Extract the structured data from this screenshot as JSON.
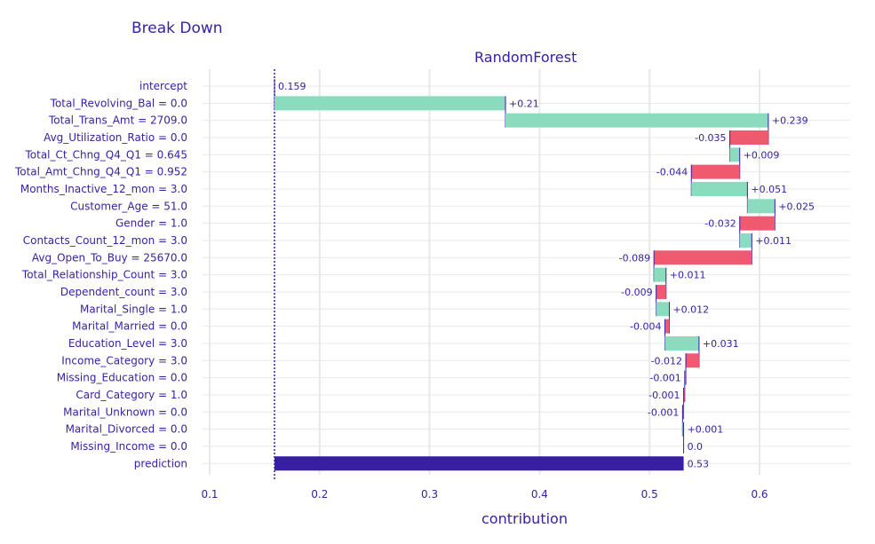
{
  "title": "Break Down",
  "chart_data": {
    "type": "bar",
    "subplot_title": "RandomForest",
    "xlabel": "contribution",
    "ylabel": "",
    "xlim": [
      0.1,
      0.68
    ],
    "x_ticks": [
      0.1,
      0.2,
      0.3,
      0.4,
      0.5,
      0.6
    ],
    "x_tick_labels": [
      "0.1",
      "0.2",
      "0.3",
      "0.4",
      "0.5",
      "0.6"
    ],
    "grid": true,
    "intercept_line": 0.159,
    "colors": {
      "positive": "#8bdcbe",
      "negative": "#f05a71",
      "prediction": "#371ea3",
      "connector": "#371ea3",
      "text": "#371ea3",
      "grid": "#e8e8e8"
    },
    "rows": [
      {
        "label": "intercept",
        "start": 0.159,
        "end": 0.159,
        "value_label": "0.159",
        "kind": "intercept"
      },
      {
        "label": "Total_Revolving_Bal = 0.0",
        "start": 0.159,
        "end": 0.369,
        "value_label": "+0.21",
        "kind": "positive"
      },
      {
        "label": "Total_Trans_Amt = 2709.0",
        "start": 0.369,
        "end": 0.608,
        "value_label": "+0.239",
        "kind": "positive"
      },
      {
        "label": "Avg_Utilization_Ratio = 0.0",
        "start": 0.608,
        "end": 0.573,
        "value_label": "-0.035",
        "kind": "negative"
      },
      {
        "label": "Total_Ct_Chng_Q4_Q1 = 0.645",
        "start": 0.573,
        "end": 0.582,
        "value_label": "+0.009",
        "kind": "positive"
      },
      {
        "label": "Total_Amt_Chng_Q4_Q1 = 0.952",
        "start": 0.582,
        "end": 0.538,
        "value_label": "-0.044",
        "kind": "negative"
      },
      {
        "label": "Months_Inactive_12_mon = 3.0",
        "start": 0.538,
        "end": 0.589,
        "value_label": "+0.051",
        "kind": "positive"
      },
      {
        "label": "Customer_Age = 51.0",
        "start": 0.589,
        "end": 0.614,
        "value_label": "+0.025",
        "kind": "positive"
      },
      {
        "label": "Gender = 1.0",
        "start": 0.614,
        "end": 0.582,
        "value_label": "-0.032",
        "kind": "negative"
      },
      {
        "label": "Contacts_Count_12_mon = 3.0",
        "start": 0.582,
        "end": 0.593,
        "value_label": "+0.011",
        "kind": "positive"
      },
      {
        "label": "Avg_Open_To_Buy = 25670.0",
        "start": 0.593,
        "end": 0.504,
        "value_label": "-0.089",
        "kind": "negative"
      },
      {
        "label": "Total_Relationship_Count = 3.0",
        "start": 0.504,
        "end": 0.515,
        "value_label": "+0.011",
        "kind": "positive"
      },
      {
        "label": "Dependent_count = 3.0",
        "start": 0.515,
        "end": 0.506,
        "value_label": "-0.009",
        "kind": "negative"
      },
      {
        "label": "Marital_Single = 1.0",
        "start": 0.506,
        "end": 0.518,
        "value_label": "+0.012",
        "kind": "positive"
      },
      {
        "label": "Marital_Married = 0.0",
        "start": 0.518,
        "end": 0.514,
        "value_label": "-0.004",
        "kind": "negative"
      },
      {
        "label": "Education_Level = 3.0",
        "start": 0.514,
        "end": 0.545,
        "value_label": "+0.031",
        "kind": "positive"
      },
      {
        "label": "Income_Category = 3.0",
        "start": 0.545,
        "end": 0.533,
        "value_label": "-0.012",
        "kind": "negative"
      },
      {
        "label": "Missing_Education = 0.0",
        "start": 0.533,
        "end": 0.532,
        "value_label": "-0.001",
        "kind": "negative"
      },
      {
        "label": "Card_Category = 1.0",
        "start": 0.532,
        "end": 0.531,
        "value_label": "-0.001",
        "kind": "negative"
      },
      {
        "label": "Marital_Unknown = 0.0",
        "start": 0.531,
        "end": 0.53,
        "value_label": "-0.001",
        "kind": "negative"
      },
      {
        "label": "Marital_Divorced = 0.0",
        "start": 0.53,
        "end": 0.531,
        "value_label": "+0.001",
        "kind": "positive"
      },
      {
        "label": "Missing_Income = 0.0",
        "start": 0.531,
        "end": 0.531,
        "value_label": "0.0",
        "kind": "zero"
      },
      {
        "label": "prediction",
        "start": 0.159,
        "end": 0.531,
        "value_label": "0.53",
        "kind": "prediction"
      }
    ]
  }
}
